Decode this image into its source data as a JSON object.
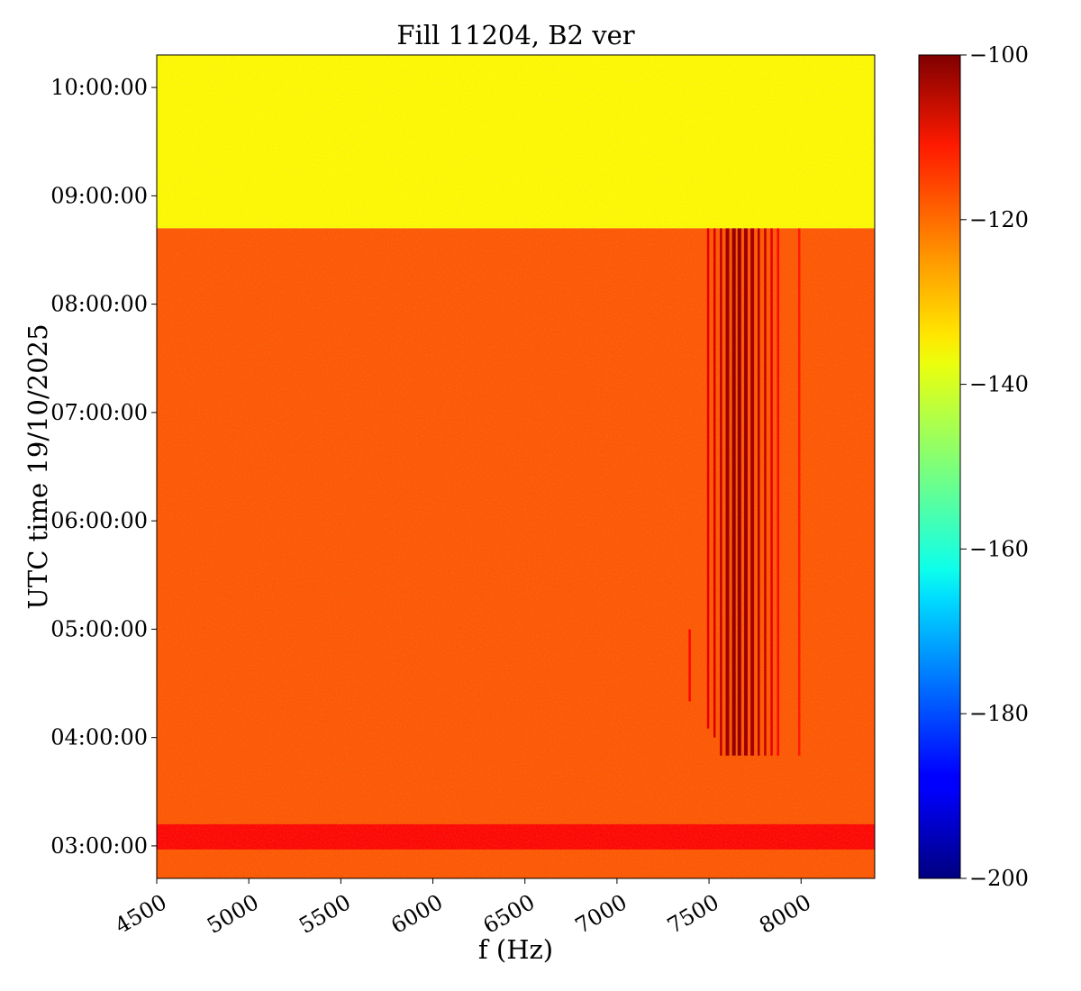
{
  "chart_data": {
    "type": "heatmap",
    "title": "Fill 11204, B2 ver",
    "xlabel": "f (Hz)",
    "ylabel": "UTC time 19/10/2025",
    "xlim": [
      4500,
      8400
    ],
    "xticks": [
      4500,
      5000,
      5500,
      6000,
      6500,
      7000,
      7500,
      8000
    ],
    "ylim": [
      "02:42:00",
      "10:18:00"
    ],
    "yticks": [
      "03:00:00",
      "04:00:00",
      "05:00:00",
      "06:00:00",
      "07:00:00",
      "08:00:00",
      "09:00:00",
      "10:00:00"
    ],
    "colorbar": {
      "min": -200,
      "max": -100,
      "ticks": [
        -100,
        -120,
        -140,
        -160,
        -180,
        -200
      ],
      "colormap": "jet"
    },
    "regions": [
      {
        "name": "background-after-dump",
        "time_from": "08:42:00",
        "time_to": "10:18:00",
        "level": -137
      },
      {
        "name": "background-during-fill",
        "time_from": "02:42:00",
        "time_to": "08:42:00",
        "level": -121
      },
      {
        "name": "injection-band",
        "time_from": "02:58:00",
        "time_to": "03:12:00",
        "level": -113
      }
    ],
    "spectral_lines": [
      {
        "f": 7395,
        "t_start": "04:20:00",
        "t_end": "05:00:00",
        "level": -113
      },
      {
        "f": 7495,
        "t_start": "04:05:00",
        "t_end": "08:42:00",
        "level": -110
      },
      {
        "f": 7530,
        "t_start": "04:00:00",
        "t_end": "08:42:00",
        "level": -109
      },
      {
        "f": 7565,
        "t_start": "03:50:00",
        "t_end": "08:42:00",
        "level": -106
      },
      {
        "f": 7600,
        "t_start": "03:50:00",
        "t_end": "08:42:00",
        "level": -103
      },
      {
        "f": 7635,
        "t_start": "03:50:00",
        "t_end": "08:42:00",
        "level": -102
      },
      {
        "f": 7665,
        "t_start": "03:50:00",
        "t_end": "08:42:00",
        "level": -102
      },
      {
        "f": 7700,
        "t_start": "03:50:00",
        "t_end": "08:42:00",
        "level": -103
      },
      {
        "f": 7735,
        "t_start": "03:50:00",
        "t_end": "08:42:00",
        "level": -104
      },
      {
        "f": 7770,
        "t_start": "03:50:00",
        "t_end": "08:42:00",
        "level": -105
      },
      {
        "f": 7805,
        "t_start": "03:50:00",
        "t_end": "08:42:00",
        "level": -107
      },
      {
        "f": 7840,
        "t_start": "03:50:00",
        "t_end": "08:42:00",
        "level": -110
      },
      {
        "f": 7875,
        "t_start": "03:50:00",
        "t_end": "08:42:00",
        "level": -113
      },
      {
        "f": 7990,
        "t_start": "03:50:00",
        "t_end": "08:42:00",
        "level": -115
      }
    ]
  }
}
